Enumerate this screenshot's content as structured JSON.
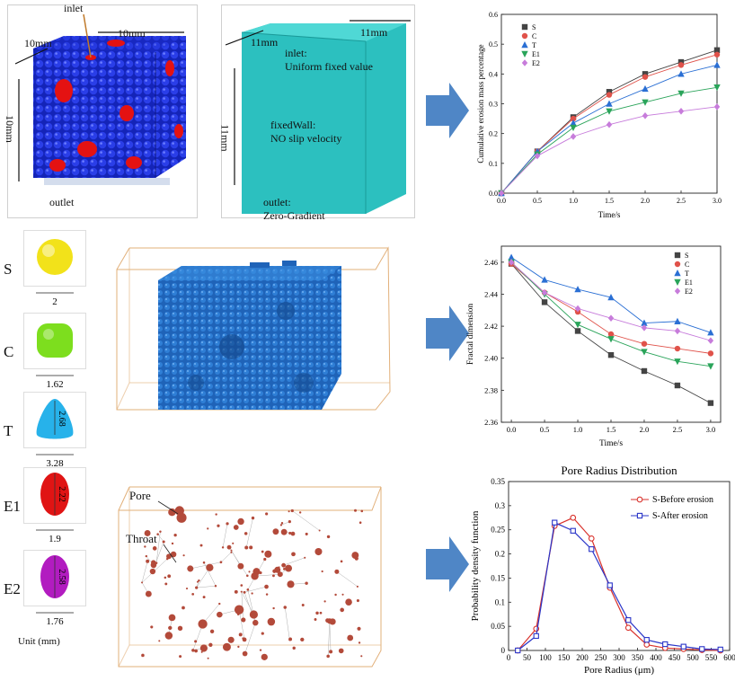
{
  "geometry_left": {
    "inlet": "inlet",
    "dim_x": "10mm",
    "dim_z": "10mm",
    "dim_y": "10mm",
    "outlet": "outlet"
  },
  "geometry_right": {
    "dim_x": "11mm",
    "dim_z": "11mm",
    "dim_y": "11mm",
    "inlet_title": "inlet:",
    "inlet_desc": "Uniform fixed value",
    "wall_title": "fixedWall:",
    "wall_desc": "NO slip velocity",
    "outlet_title": "outlet:",
    "outlet_desc": "Zero-Gradient"
  },
  "shapes": [
    {
      "letter": "S",
      "dim": "2",
      "inner": "",
      "color": "#f2e21a"
    },
    {
      "letter": "C",
      "dim": "1.62",
      "inner": "",
      "color": "#7dde1e"
    },
    {
      "letter": "T",
      "dim": "3.28",
      "inner": "2.68",
      "color": "#27b2ea"
    },
    {
      "letter": "E1",
      "dim": "1.9",
      "inner": "2.22",
      "color": "#e01414"
    },
    {
      "letter": "E2",
      "dim": "1.76",
      "inner": "2.58",
      "color": "#b21cc0"
    }
  ],
  "unit_label": "Unit (mm)",
  "network": {
    "pore": "Pore",
    "throat": "Throat"
  },
  "colors": {
    "arrow": "#4f86c6",
    "packing_blue": "#1b2fd6",
    "pore_red": "#b34a3a",
    "fluid_teal": "#27bdbd"
  },
  "chart_data": [
    {
      "type": "line",
      "title": "",
      "xlabel": "Time/s",
      "ylabel": "Cumulative erosion mass percentage",
      "xlim": [
        0,
        3
      ],
      "ylim": [
        0,
        0.6
      ],
      "xticks": [
        "0.0",
        "0.5",
        "1.0",
        "1.5",
        "2.0",
        "2.5",
        "3.0"
      ],
      "yticks": [
        "0.0",
        "0.1",
        "0.2",
        "0.3",
        "0.4",
        "0.5",
        "0.6"
      ],
      "x": [
        0,
        0.5,
        1.0,
        1.5,
        2.0,
        2.5,
        3.0
      ],
      "legend_position": "top-left",
      "series": [
        {
          "name": "S",
          "color": "#444444",
          "marker": "square",
          "values": [
            0,
            0.14,
            0.255,
            0.34,
            0.4,
            0.44,
            0.48
          ]
        },
        {
          "name": "C",
          "color": "#e0524a",
          "marker": "circle",
          "values": [
            0,
            0.14,
            0.25,
            0.33,
            0.39,
            0.43,
            0.465
          ]
        },
        {
          "name": "T",
          "color": "#2a6fd4",
          "marker": "triangle-up",
          "values": [
            0,
            0.14,
            0.235,
            0.3,
            0.35,
            0.4,
            0.43
          ]
        },
        {
          "name": "E1",
          "color": "#2aa45a",
          "marker": "triangle-down",
          "values": [
            0,
            0.13,
            0.22,
            0.275,
            0.305,
            0.335,
            0.355
          ]
        },
        {
          "name": "E2",
          "color": "#c77cdb",
          "marker": "diamond",
          "values": [
            0,
            0.125,
            0.19,
            0.23,
            0.26,
            0.275,
            0.29
          ]
        }
      ]
    },
    {
      "type": "line",
      "title": "",
      "xlabel": "Time/s",
      "ylabel": "Fractal dimension",
      "xlim": [
        -0.15,
        3.15
      ],
      "ylim": [
        2.36,
        2.47
      ],
      "xticks": [
        "0.0",
        "0.5",
        "1.0",
        "1.5",
        "2.0",
        "2.5",
        "3.0"
      ],
      "yticks": [
        "2.36",
        "2.38",
        "2.40",
        "2.42",
        "2.44",
        "2.46"
      ],
      "x": [
        0,
        0.5,
        1.0,
        1.5,
        2.0,
        2.5,
        3.0
      ],
      "legend_position": "top-right",
      "series": [
        {
          "name": "S",
          "color": "#444444",
          "marker": "square",
          "values": [
            2.459,
            2.435,
            2.417,
            2.402,
            2.392,
            2.383,
            2.372
          ]
        },
        {
          "name": "C",
          "color": "#e0524a",
          "marker": "circle",
          "values": [
            2.459,
            2.441,
            2.429,
            2.415,
            2.409,
            2.406,
            2.403
          ]
        },
        {
          "name": "T",
          "color": "#2a6fd4",
          "marker": "triangle-up",
          "values": [
            2.463,
            2.449,
            2.443,
            2.438,
            2.422,
            2.423,
            2.416
          ]
        },
        {
          "name": "E1",
          "color": "#2aa45a",
          "marker": "triangle-down",
          "values": [
            2.46,
            2.44,
            2.421,
            2.412,
            2.404,
            2.398,
            2.395
          ]
        },
        {
          "name": "E2",
          "color": "#c77cdb",
          "marker": "diamond",
          "values": [
            2.46,
            2.441,
            2.431,
            2.425,
            2.419,
            2.417,
            2.411
          ]
        }
      ]
    },
    {
      "type": "line",
      "title": "Pore Radius Distribution",
      "xlabel": "Pore Radius (μm)",
      "ylabel": "Probability density function",
      "xlim": [
        0,
        600
      ],
      "ylim": [
        0,
        0.35
      ],
      "xticks": [
        "0",
        "50",
        "100",
        "150",
        "200",
        "250",
        "300",
        "350",
        "400",
        "450",
        "500",
        "550",
        "600"
      ],
      "yticks": [
        "0",
        "0.05",
        "0.1",
        "0.15",
        "0.2",
        "0.25",
        "0.3",
        "0.35"
      ],
      "legend_position": "top-right",
      "series": [
        {
          "name": "S-Before erosion",
          "color": "#d9322c",
          "marker": "circle-open",
          "x": [
            25,
            75,
            125,
            175,
            225,
            275,
            325,
            375,
            425,
            475,
            525,
            575
          ],
          "values": [
            0,
            0.045,
            0.258,
            0.275,
            0.232,
            0.13,
            0.047,
            0.012,
            0.005,
            0.003,
            0.001,
            0.0
          ]
        },
        {
          "name": "S-After erosion",
          "color": "#2a35c8",
          "marker": "square-open",
          "x": [
            25,
            75,
            125,
            175,
            225,
            275,
            325,
            375,
            425,
            475,
            525,
            575
          ],
          "values": [
            0,
            0.03,
            0.265,
            0.248,
            0.21,
            0.135,
            0.063,
            0.022,
            0.013,
            0.008,
            0.003,
            0.002
          ]
        }
      ]
    }
  ]
}
